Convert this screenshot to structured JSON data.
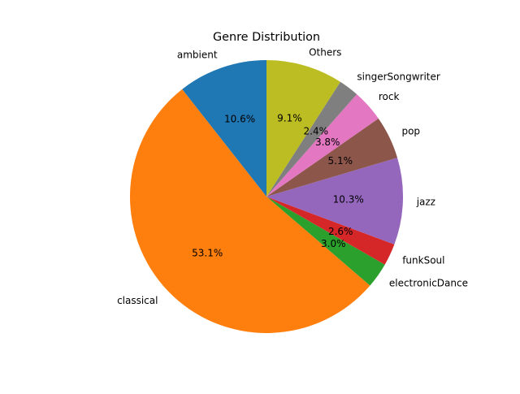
{
  "chart_data": {
    "type": "pie",
    "title": "Genre Distribution",
    "slices": [
      {
        "label": "ambient",
        "value": 10.6,
        "pct_text": "10.6%",
        "color": "#1f77b4"
      },
      {
        "label": "classical",
        "value": 53.1,
        "pct_text": "53.1%",
        "color": "#ff7f0e"
      },
      {
        "label": "electronicDance",
        "value": 3.0,
        "pct_text": "3.0%",
        "color": "#2ca02c"
      },
      {
        "label": "funkSoul",
        "value": 2.6,
        "pct_text": "2.6%",
        "color": "#d62728"
      },
      {
        "label": "jazz",
        "value": 10.3,
        "pct_text": "10.3%",
        "color": "#9467bd"
      },
      {
        "label": "pop",
        "value": 5.1,
        "pct_text": "5.1%",
        "color": "#8c564b"
      },
      {
        "label": "rock",
        "value": 3.8,
        "pct_text": "3.8%",
        "color": "#e377c2"
      },
      {
        "label": "singerSongwriter",
        "value": 2.4,
        "pct_text": "2.4%",
        "color": "#7f7f7f"
      },
      {
        "label": "Others",
        "value": 9.1,
        "pct_text": "9.1%",
        "color": "#bcbd22"
      }
    ],
    "start_angle_deg": 90,
    "direction": "counterclockwise",
    "legend": "none"
  }
}
